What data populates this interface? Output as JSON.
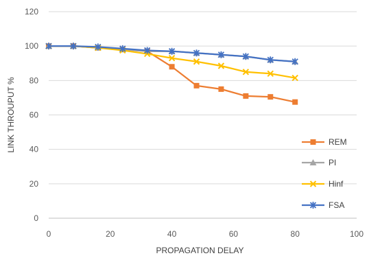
{
  "chart_data": {
    "type": "line",
    "title": "",
    "xlabel": "PROPAGATION DELAY",
    "ylabel": "LINK THROUPUT %",
    "xlim": [
      0,
      100
    ],
    "ylim": [
      0,
      120
    ],
    "x_ticks": [
      0,
      20,
      40,
      60,
      80,
      100
    ],
    "y_ticks": [
      0,
      20,
      40,
      60,
      80,
      100,
      120
    ],
    "grid": "horizontal",
    "legend_position": "bottom-right",
    "x": [
      0,
      8,
      16,
      24,
      32,
      40,
      48,
      56,
      64,
      72,
      80
    ],
    "series": [
      {
        "name": "REM",
        "color": "#ED7D31",
        "marker": "square",
        "values": [
          100,
          100,
          99,
          98,
          97,
          88,
          77,
          75,
          71,
          70.5,
          67.5
        ]
      },
      {
        "name": "PI",
        "color": "#A5A5A5",
        "marker": "triangle",
        "values": [
          100,
          100,
          99,
          98,
          97,
          97,
          96,
          95,
          94,
          92,
          91
        ]
      },
      {
        "name": "Hinf",
        "color": "#FFC000",
        "marker": "x",
        "values": [
          100,
          100,
          99,
          97.5,
          95.5,
          93,
          91,
          88.5,
          85,
          84,
          81.5
        ]
      },
      {
        "name": "FSA",
        "color": "#4472C4",
        "marker": "star",
        "values": [
          100,
          100,
          99.5,
          98.5,
          97.5,
          97,
          96,
          95,
          94,
          92,
          91
        ]
      }
    ]
  }
}
